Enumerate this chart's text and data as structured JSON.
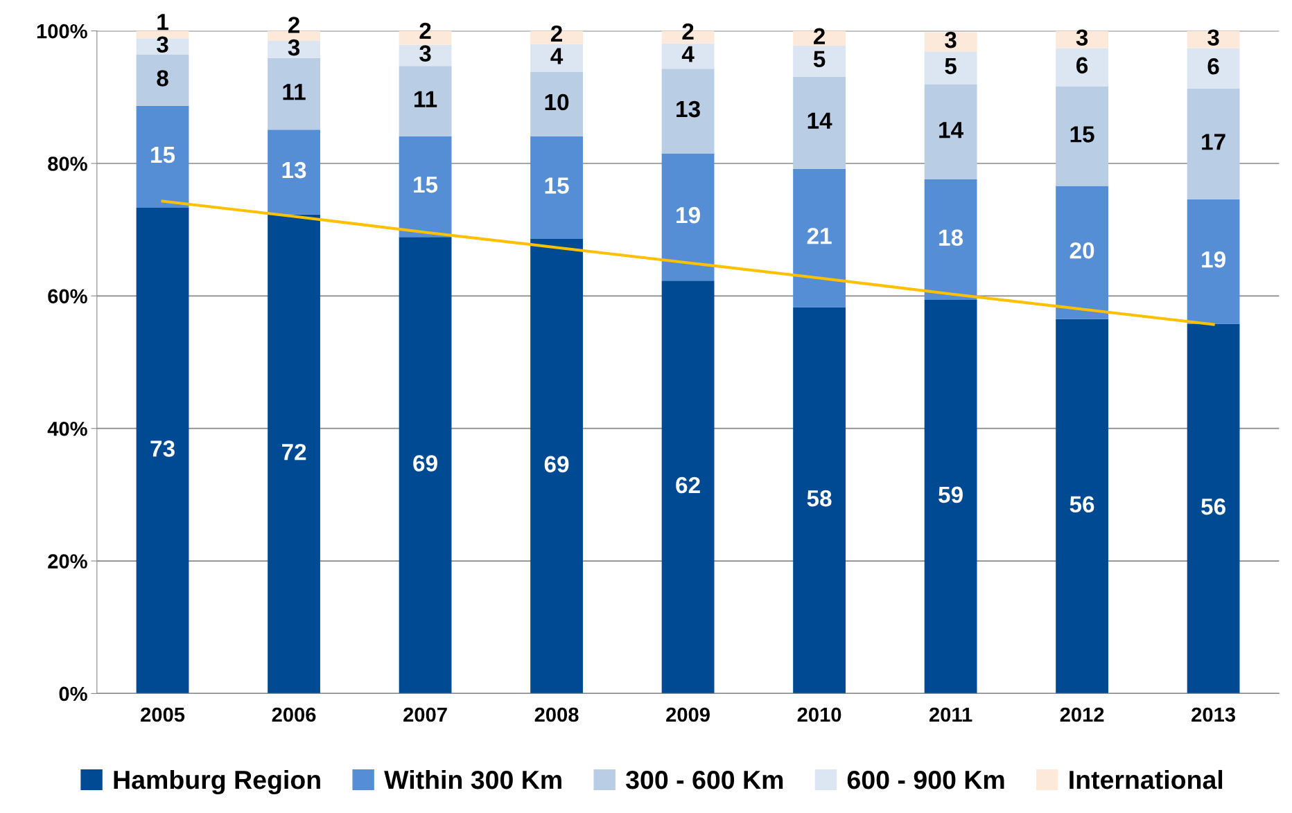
{
  "chart_data": {
    "type": "bar",
    "stacked": true,
    "categories": [
      "2005",
      "2006",
      "2007",
      "2008",
      "2009",
      "2010",
      "2011",
      "2012",
      "2013"
    ],
    "ylim": [
      0,
      100
    ],
    "yticks": [
      {
        "value": 0,
        "label": "0%"
      },
      {
        "value": 20,
        "label": "20%"
      },
      {
        "value": 40,
        "label": "40%"
      },
      {
        "value": 60,
        "label": "60%"
      },
      {
        "value": 80,
        "label": "80%"
      },
      {
        "value": 100,
        "label": "100%"
      }
    ],
    "grid": "y",
    "legend": "bottom",
    "series": [
      {
        "name": "Hamburg Region",
        "color": "#004a94",
        "values": [
          73.3,
          72.3,
          68.9,
          68.6,
          62.3,
          58.3,
          59.4,
          56.5,
          55.8
        ],
        "value_labels": [
          "73",
          "72",
          "69",
          "69",
          "62",
          "58",
          "59",
          "56",
          "56"
        ]
      },
      {
        "name": "Within 300 Km",
        "color": "#558ed5",
        "values": [
          15.4,
          12.8,
          15.2,
          15.5,
          19.2,
          20.9,
          18.2,
          20.1,
          18.8
        ],
        "value_labels": [
          "15",
          "13",
          "15",
          "15",
          "19",
          "21",
          "18",
          "20",
          "19"
        ]
      },
      {
        "name": "300 - 600 Km",
        "color": "#b9cde5",
        "values": [
          7.7,
          10.8,
          10.6,
          9.7,
          12.8,
          13.9,
          14.3,
          15.0,
          16.7
        ],
        "value_labels": [
          "8",
          "11",
          "11",
          "10",
          "13",
          "14",
          "14",
          "15",
          "17"
        ]
      },
      {
        "name": "600 - 900 Km",
        "color": "#dce6f2",
        "values": [
          2.5,
          2.6,
          3.2,
          4.2,
          3.8,
          4.7,
          5.0,
          5.8,
          6.1
        ],
        "value_labels": [
          "3",
          "3",
          "3",
          "4",
          "4",
          "5",
          "5",
          "6",
          "6"
        ]
      },
      {
        "name": "International",
        "color": "#fde9d9",
        "values": [
          1.1,
          1.5,
          2.1,
          2.0,
          1.9,
          2.2,
          2.9,
          2.6,
          2.6
        ],
        "value_labels": [
          "1",
          "2",
          "2",
          "2",
          "2",
          "2",
          "3",
          "3",
          "3"
        ]
      },
      {
        "type": "line",
        "color": "#ffc000",
        "values": [
          74.3,
          72.0,
          69.6,
          67.3,
          65.0,
          62.7,
          60.3,
          58.0,
          55.7
        ]
      }
    ]
  }
}
